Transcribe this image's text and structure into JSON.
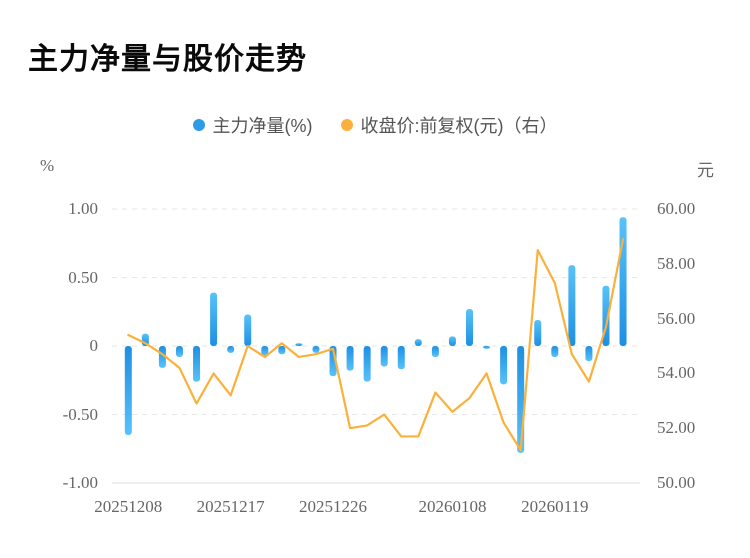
{
  "page": {
    "title": "主力净量与股价走势"
  },
  "legend": {
    "items": [
      {
        "label": "主力净量(%)",
        "color": "#2D9CE8"
      },
      {
        "label": "收盘价:前复权(元)（右）",
        "color": "#FBB03B"
      }
    ]
  },
  "axes": {
    "left_unit": "%",
    "right_unit": "元",
    "left_ticks": [
      "1.00",
      "0.50",
      "0",
      "-0.50",
      "-1.00"
    ],
    "right_ticks": [
      "60.00",
      "58.00",
      "56.00",
      "54.00",
      "52.00",
      "50.00"
    ]
  },
  "chart_data": {
    "type": "combo_bar_line",
    "title": "主力净量与股价走势",
    "legend_position": "top center",
    "grid": "horizontal dashed",
    "left_axis": {
      "unit": "%",
      "range": [
        -1.0,
        1.0
      ],
      "tick_values": [
        1.0,
        0.5,
        0,
        -0.5,
        -1.0
      ]
    },
    "right_axis": {
      "unit": "元",
      "range": [
        50.0,
        60.0
      ],
      "tick_values": [
        60,
        58,
        56,
        54,
        52,
        50
      ]
    },
    "x_tick_labels": [
      {
        "label": "20251208",
        "bar_index": 0
      },
      {
        "label": "20251217",
        "bar_index": 6
      },
      {
        "label": "20251226",
        "bar_index": 12
      },
      {
        "label": "20260108",
        "bar_index": 19
      },
      {
        "label": "20260119",
        "bar_index": 25
      }
    ],
    "series": [
      {
        "name": "主力净量(%)",
        "type": "bar",
        "axis": "left",
        "color": "#2D9CE8",
        "values": [
          -0.65,
          0.09,
          -0.16,
          -0.08,
          -0.26,
          0.39,
          -0.05,
          0.23,
          -0.07,
          -0.06,
          0.02,
          -0.05,
          -0.22,
          -0.18,
          -0.26,
          -0.15,
          -0.17,
          0.05,
          -0.08,
          0.07,
          0.27,
          -0.02,
          -0.28,
          -0.78,
          0.19,
          -0.08,
          0.59,
          -0.11,
          0.44,
          0.94
        ]
      },
      {
        "name": "收盘价:前复权(元)（右）",
        "type": "line",
        "axis": "right",
        "color": "#FBB03B",
        "values": [
          55.4,
          55.1,
          54.7,
          54.2,
          52.9,
          54.0,
          53.2,
          55.0,
          54.6,
          55.1,
          54.6,
          54.7,
          54.9,
          52.0,
          52.1,
          52.5,
          51.7,
          51.7,
          53.3,
          52.6,
          53.1,
          54.0,
          52.2,
          51.2,
          58.5,
          57.3,
          54.7,
          53.7,
          55.7,
          58.9
        ]
      }
    ]
  },
  "colors": {
    "bar_near_zero": "#1E8FE2",
    "bar_far_end": "#58C2F9",
    "line": "#FBB03B",
    "grid": "#e6e6e6",
    "axis_line": "#dcdcdc",
    "tick_text": "#666666"
  }
}
